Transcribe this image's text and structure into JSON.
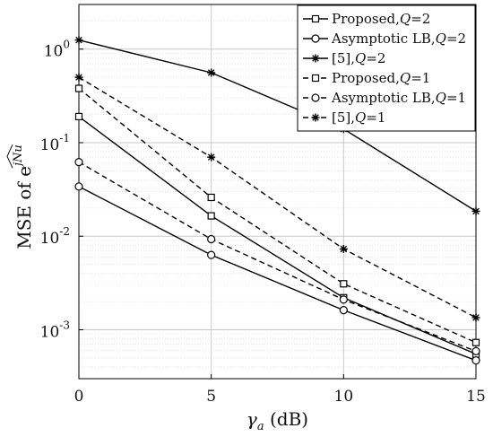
{
  "chart_data": {
    "type": "line",
    "xlabel_base": "γ",
    "xlabel_sub": "a",
    "xlabel_unit": " (dB)",
    "ylabel_prefix": "MSE of e",
    "ylabel_exp": "jNu",
    "xlim": [
      0,
      15
    ],
    "ylim": [
      0.0003,
      3
    ],
    "yscale": "log",
    "grid": true,
    "legend_position": "top-right",
    "x_ticks": [
      "0",
      "5",
      "10",
      "15"
    ],
    "y_ticks": [
      {
        "base": "10",
        "exp": "0"
      },
      {
        "base": "10",
        "exp": "-1"
      },
      {
        "base": "10",
        "exp": "-2"
      },
      {
        "base": "10",
        "exp": "-3"
      }
    ],
    "x": [
      0,
      5,
      10,
      15
    ],
    "series": [
      {
        "name": "Proposed,Q=2",
        "label_main": "Proposed,",
        "label_q": "Q",
        "label_val": "=2",
        "marker": "square",
        "dash": "solid",
        "values": [
          0.19,
          0.0165,
          0.0022,
          0.00055
        ]
      },
      {
        "name": "Asymptotic LB,Q=2",
        "label_main": "Asymptotic LB,",
        "label_q": "Q",
        "label_val": "=2",
        "marker": "circle",
        "dash": "solid",
        "values": [
          0.034,
          0.0063,
          0.00162,
          0.00047
        ]
      },
      {
        "name": "[5],Q=2",
        "label_main": "[5],",
        "label_q": "Q",
        "label_val": "=2",
        "marker": "star",
        "dash": "solid",
        "values": [
          1.25,
          0.56,
          0.14,
          0.0185
        ]
      },
      {
        "name": "Proposed,Q=1",
        "label_main": "Proposed,",
        "label_q": "Q",
        "label_val": "=1",
        "marker": "square",
        "dash": "dashed",
        "values": [
          0.38,
          0.026,
          0.0031,
          0.00073
        ]
      },
      {
        "name": "Asymptotic LB,Q=1",
        "label_main": "Asymptotic LB,",
        "label_q": "Q",
        "label_val": "=1",
        "marker": "circle",
        "dash": "dashed",
        "values": [
          0.062,
          0.0093,
          0.0021,
          0.00059
        ]
      },
      {
        "name": "[5],Q=1",
        "label_main": "[5],",
        "label_q": "Q",
        "label_val": "=1",
        "marker": "star",
        "dash": "dashed",
        "values": [
          0.5,
          0.07,
          0.0073,
          0.00135
        ]
      }
    ]
  }
}
